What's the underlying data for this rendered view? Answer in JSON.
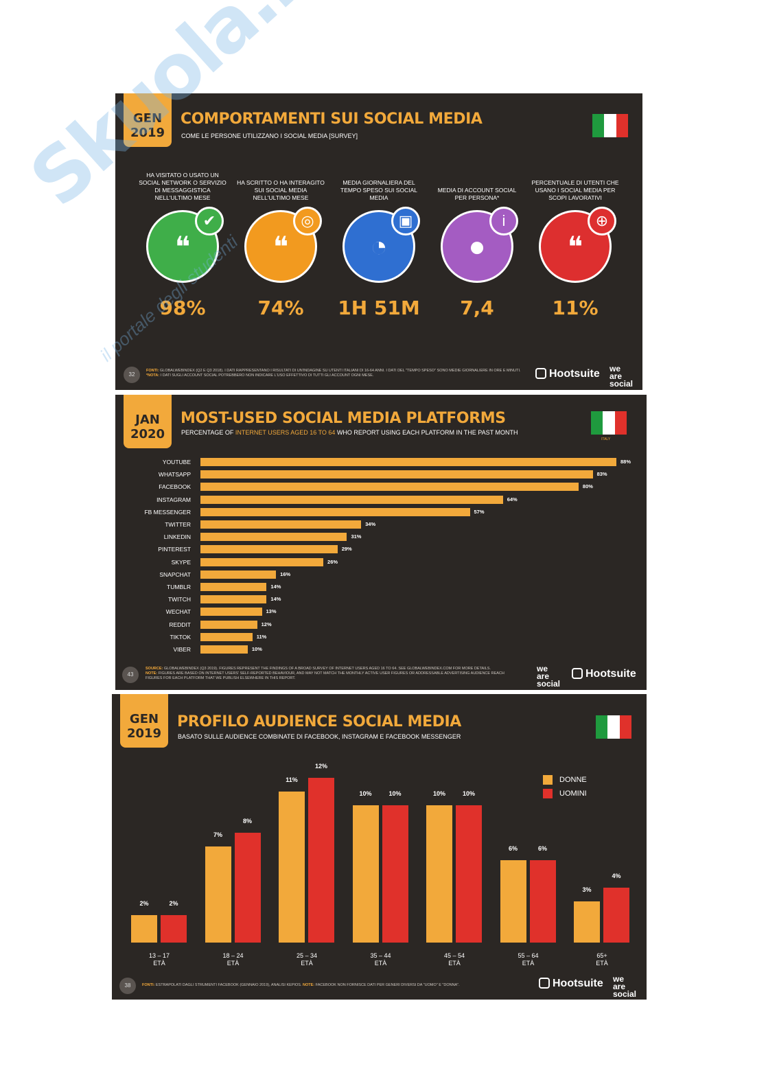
{
  "slide1": {
    "tab": [
      "GEN",
      "2019"
    ],
    "title": "COMPORTAMENTI SUI SOCIAL MEDIA",
    "subtitle": "COME LE PERSONE UTILIZZANO I SOCIAL MEDIA [SURVEY]",
    "page": "32",
    "stats": [
      {
        "label": "HA VISITATO O USATO UN SOCIAL NETWORK O SERVIZIO DI MESSAGGISTICA NELL'ULTIMO MESE",
        "value": "98%",
        "color": "#3fae49",
        "badge": "✔"
      },
      {
        "label": "HA SCRITTO O HA INTERAGITO SUI SOCIAL MEDIA NELL'ULTIMO MESE",
        "value": "74%",
        "color": "#f29a1f",
        "badge": "◎"
      },
      {
        "label": "MEDIA GIORNALIERA DEL TEMPO SPESO SUI SOCIAL MEDIA",
        "value": "1H 51M",
        "color": "#2f6fd1",
        "badge": "▣"
      },
      {
        "label": "MEDIA DI ACCOUNT SOCIAL PER PERSONA*",
        "value": "7,4",
        "color": "#a45cc2",
        "badge": "i"
      },
      {
        "label": "PERCENTUALE DI UTENTI CHE USANO I SOCIAL MEDIA PER SCOPI LAVORATIVI",
        "value": "11%",
        "color": "#dd2f2f",
        "badge": "⊕"
      }
    ],
    "footnote_source": "FONTI:",
    "footnote_text": "GLOBALWEBINDEX (Q2 E Q3 2018). I DATI RAPPRESENTANO I RISULTATI DI UN'INDAGINE SU UTENTI ITALIANI DI 16-64 ANNI. I DATI DEL \"TEMPO SPESO\" SONO MEDIE GIORNALIERE IN ORE E MINUTI.",
    "footnote_note": "*NOTA:",
    "footnote_text2": "I DATI SUGLI ACCOUNT SOCIAL POTREBBERO NON INDICARE L'USO EFFETTIVO DI TUTTI GLI ACCOUNT OGNI MESE.",
    "hootsuite": "Hootsuite",
    "weare": [
      "we",
      "are",
      "social"
    ]
  },
  "slide2": {
    "tab": [
      "JAN",
      "2020"
    ],
    "title": "MOST-USED SOCIAL MEDIA PLATFORMS",
    "subtitle_pre": "PERCENTAGE OF",
    "subtitle_hl": "INTERNET USERS AGED 16 TO 64",
    "subtitle_post": "WHO REPORT USING EACH PLATFORM IN THE PAST MONTH",
    "flag_label": "ITALY",
    "page": "43",
    "footnote_source": "SOURCE:",
    "footnote_text": "GLOBALWEBINDEX (Q3 2019). FIGURES REPRESENT THE FINDINGS OF A BROAD SURVEY OF INTERNET USERS AGED 16 TO 64. SEE GLOBALWEBINDEX.COM FOR MORE DETAILS.",
    "footnote_note": "NOTE:",
    "footnote_text2": "FIGURES ARE BASED ON INTERNET USERS' SELF-REPORTED BEHAVIOUR, AND MAY NOT MATCH THE MONTHLY ACTIVE USER FIGURES OR ADDRESSABLE ADVERTISING AUDIENCE REACH FIGURES FOR EACH PLATFORM THAT WE PUBLISH ELSEWHERE IN THIS REPORT.",
    "hootsuite": "Hootsuite",
    "weare": [
      "we",
      "are",
      "social"
    ]
  },
  "slide3": {
    "tab": [
      "GEN",
      "2019"
    ],
    "title": "PROFILO AUDIENCE SOCIAL MEDIA",
    "subtitle": "BASATO SULLE AUDIENCE COMBINATE DI FACEBOOK, INSTAGRAM E FACEBOOK MESSENGER",
    "page": "38",
    "legend": [
      "DONNE",
      "UOMINI"
    ],
    "age_sub": "ETÀ",
    "footnote_source": "FONTI:",
    "footnote_text": "ESTRAPOLATI DAGLI STRUMENTI FACEBOOK (GENNAIO 2019), ANALISI KEPIOS.",
    "footnote_note": "NOTE:",
    "footnote_text2": "FACEBOOK NON FORNISCE DATI PER GENERI DIVERSI DA \"UOMO\" E \"DONNA\".",
    "hootsuite": "Hootsuite",
    "weare": [
      "we",
      "are",
      "social"
    ]
  },
  "watermark": "Skuola.net",
  "watermark_sub": "il portale degli studenti",
  "chart_data": [
    {
      "type": "bar",
      "orientation": "horizontal",
      "title": "MOST-USED SOCIAL MEDIA PLATFORMS",
      "categories": [
        "YOUTUBE",
        "WHATSAPP",
        "FACEBOOK",
        "INSTAGRAM",
        "FB MESSENGER",
        "TWITTER",
        "LINKEDIN",
        "PINTEREST",
        "SKYPE",
        "SNAPCHAT",
        "TUMBLR",
        "TWITCH",
        "WECHAT",
        "REDDIT",
        "TIKTOK",
        "VIBER"
      ],
      "values": [
        88,
        83,
        80,
        64,
        57,
        34,
        31,
        29,
        26,
        16,
        14,
        14,
        13,
        12,
        11,
        10
      ],
      "value_labels": [
        "88%",
        "83%",
        "80%",
        "64%",
        "57%",
        "34%",
        "31%",
        "29%",
        "26%",
        "16%",
        "14%",
        "14%",
        "13%",
        "12%",
        "11%",
        "10%"
      ],
      "xlim": [
        0,
        88
      ]
    },
    {
      "type": "bar",
      "title": "PROFILO AUDIENCE SOCIAL MEDIA",
      "categories": [
        "13 – 17",
        "18 – 24",
        "25 – 34",
        "35 – 44",
        "45 – 54",
        "55 – 64",
        "65+"
      ],
      "series": [
        {
          "name": "DONNE",
          "color": "#f2a93b",
          "values": [
            2,
            7,
            11,
            10,
            10,
            6,
            3
          ],
          "labels": [
            "2%",
            "7%",
            "11%",
            "10%",
            "10%",
            "6%",
            "3%"
          ]
        },
        {
          "name": "UOMINI",
          "color": "#e0312b",
          "values": [
            2,
            8,
            12,
            10,
            10,
            6,
            4
          ],
          "labels": [
            "2%",
            "8%",
            "12%",
            "10%",
            "10%",
            "6%",
            "4%"
          ]
        }
      ],
      "ylim": [
        0,
        12
      ]
    }
  ]
}
